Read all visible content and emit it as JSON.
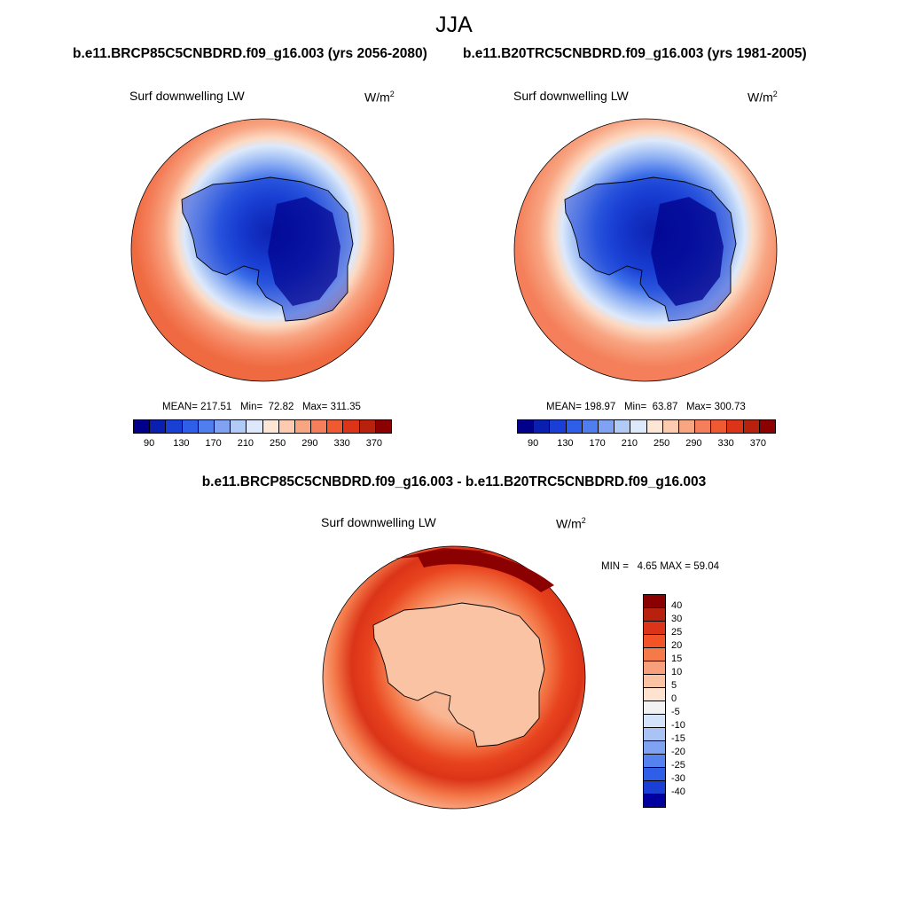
{
  "chart_data": [
    {
      "type": "heatmap",
      "projection": "south polar stereographic",
      "case": "b.e11.BRCP85C5CNBDRD.f09_g16.003 (yrs 2056-2080)",
      "variable": "Surf downwelling LW",
      "units": "W/m",
      "units_exp": "2",
      "stats": {
        "mean_label": "MEAN=",
        "mean": "217.51",
        "min_label": "Min=",
        "min": "72.82",
        "max_label": "Max=",
        "max": "311.35"
      },
      "levels": [
        90,
        130,
        170,
        210,
        250,
        290,
        330,
        370
      ],
      "colorbar_tick_labels": [
        "90",
        "130",
        "170",
        "210",
        "250",
        "290",
        "330",
        "370"
      ],
      "colors": [
        "#00008b",
        "#0a1fb0",
        "#1a3fd4",
        "#2f5ee8",
        "#4f7fef",
        "#7fa3f2",
        "#b1cbf6",
        "#dde9fb",
        "#fde6d5",
        "#fccbb0",
        "#f8a582",
        "#f47f5a",
        "#ef5a33",
        "#db3418",
        "#b8210d",
        "#8b0000"
      ]
    },
    {
      "type": "heatmap",
      "projection": "south polar stereographic",
      "case": "b.e11.B20TRC5CNBDRD.f09_g16.003 (yrs 1981-2005)",
      "variable": "Surf downwelling LW",
      "units": "W/m",
      "units_exp": "2",
      "stats": {
        "mean_label": "MEAN=",
        "mean": "198.97",
        "min_label": "Min=",
        "min": "63.87",
        "max_label": "Max=",
        "max": "300.73"
      },
      "levels": [
        90,
        130,
        170,
        210,
        250,
        290,
        330,
        370
      ],
      "colorbar_tick_labels": [
        "90",
        "130",
        "170",
        "210",
        "250",
        "290",
        "330",
        "370"
      ]
    },
    {
      "type": "heatmap",
      "projection": "south polar stereographic",
      "case": "b.e11.BRCP85C5CNBDRD.f09_g16.003 - b.e11.B20TRC5CNBDRD.f09_g16.003",
      "variable": "Surf downwelling LW",
      "units": "W/m",
      "units_exp": "2",
      "stats": {
        "min_label": "MIN =",
        "min": "4.65",
        "max_label": "MAX =",
        "max": "59.04"
      },
      "levels": [
        40,
        30,
        25,
        20,
        15,
        10,
        5,
        0,
        -5,
        -10,
        -15,
        -20,
        -25,
        -30,
        -40
      ],
      "colorbar_tick_labels": [
        "40",
        "30",
        "25",
        "20",
        "15",
        "10",
        "5",
        "0",
        "-5",
        "-10",
        "-15",
        "-20",
        "-25",
        "-30",
        "-40"
      ],
      "colors": [
        "#8b0000",
        "#b8210d",
        "#db3418",
        "#f25427",
        "#f47a4a",
        "#f8a07c",
        "#fac3a4",
        "#fde3d0",
        "#f2f2f2",
        "#d3e3fa",
        "#a9c4f4",
        "#7fa3f2",
        "#5582ee",
        "#2f5ee8",
        "#1a3fd4",
        "#0000a0"
      ]
    }
  ],
  "header": {
    "season": "JJA"
  },
  "difference_title": "b.e11.BRCP85C5CNBDRD.f09_g16.003 - b.e11.B20TRC5CNBDRD.f09_g16.003"
}
